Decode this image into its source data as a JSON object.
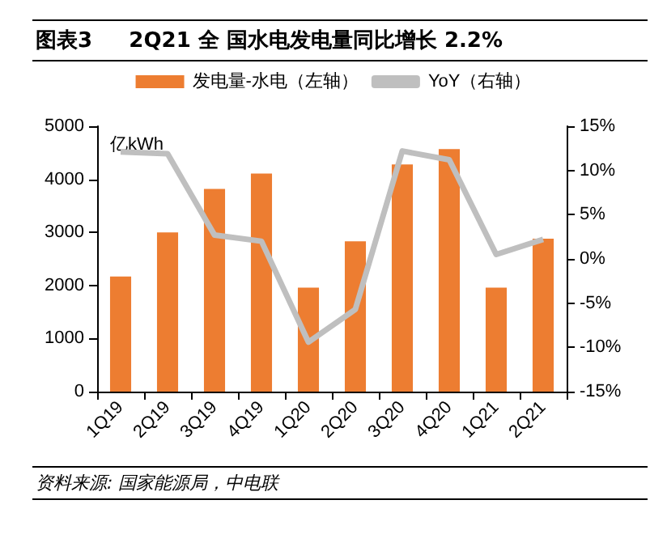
{
  "chart_data": {
    "type": "bar",
    "title": "图表3     2Q21 全 国水电发电量同比增长 2.2%",
    "categories": [
      "1Q19",
      "2Q19",
      "3Q19",
      "4Q19",
      "1Q20",
      "2Q20",
      "3Q20",
      "4Q20",
      "1Q21",
      "2Q21"
    ],
    "series": [
      {
        "name": "发电量-水电（左轴）",
        "color": "#ed7d31",
        "values": [
          2170,
          3000,
          3820,
          4110,
          1960,
          2830,
          4280,
          4570,
          1960,
          2880
        ]
      },
      {
        "name": "YoY（右轴）",
        "type": "line",
        "axis": "y2",
        "color": "#bfbfbf",
        "values": [
          12.1,
          11.9,
          2.7,
          2.0,
          -9.4,
          -5.7,
          12.2,
          11.2,
          0.5,
          2.2
        ]
      }
    ],
    "ylim": [
      0,
      5000
    ],
    "yticks": [
      0,
      1000,
      2000,
      3000,
      4000,
      5000
    ],
    "y2lim": [
      -15,
      15
    ],
    "y2ticks": [
      {
        "value": -15,
        "label": "-15%"
      },
      {
        "value": -10,
        "label": "-10%"
      },
      {
        "value": -5,
        "label": "-5%"
      },
      {
        "value": 0,
        "label": "0%"
      },
      {
        "value": 5,
        "label": "5%"
      },
      {
        "value": 10,
        "label": "10%"
      },
      {
        "value": 15,
        "label": "15%"
      }
    ],
    "ylabel": "亿kWh",
    "annotations": [
      "资料来源: 国家能源局，中电联"
    ],
    "legend": "top",
    "grid": false,
    "marker": "none",
    "line_style": "solid"
  }
}
